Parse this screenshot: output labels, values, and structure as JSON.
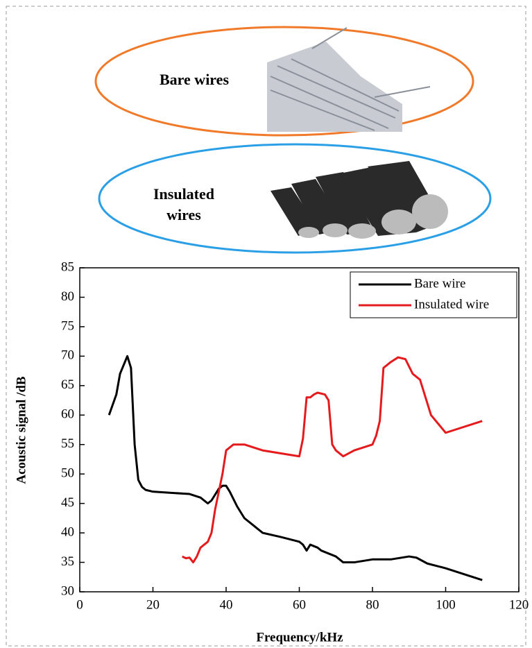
{
  "chart_data": {
    "type": "line",
    "annotations": [
      "Bare wires",
      "Insulated wires"
    ],
    "xlabel": "Frequency/kHz",
    "ylabel": "Acoustic signal /dB",
    "xlim": [
      0,
      120
    ],
    "xticks": [
      0,
      20,
      40,
      60,
      80,
      100,
      120
    ],
    "ylim": [
      30,
      85
    ],
    "yticks": [
      30,
      35,
      40,
      45,
      50,
      55,
      60,
      65,
      70,
      75,
      80,
      85
    ],
    "legend": "upper right",
    "series": [
      {
        "name": "Bare wire",
        "color": "#000000",
        "x": [
          8,
          10,
          11,
          13,
          14,
          15,
          16,
          17,
          18,
          20,
          25,
          30,
          33,
          35,
          36,
          38,
          39,
          40,
          41,
          43,
          45,
          47,
          50,
          55,
          60,
          61,
          62,
          63,
          65,
          66,
          68,
          70,
          72,
          75,
          80,
          85,
          90,
          92,
          95,
          100,
          105,
          110
        ],
        "values": [
          60,
          63.5,
          67,
          70,
          68,
          55,
          49,
          47.8,
          47.3,
          47,
          46.8,
          46.6,
          46,
          45,
          45.5,
          47.5,
          48,
          48,
          47,
          44.5,
          42.5,
          41.5,
          40,
          39.3,
          38.5,
          38,
          37,
          38,
          37.5,
          37,
          36.5,
          36,
          35,
          35,
          35.5,
          35.5,
          36,
          35.8,
          34.8,
          34,
          33,
          32
        ]
      },
      {
        "name": "Insulated wire",
        "color": "#e41a1c",
        "x": [
          28,
          29,
          30,
          31,
          32,
          33,
          35,
          36,
          37,
          38,
          39,
          40,
          42,
          45,
          50,
          55,
          60,
          61,
          62,
          63,
          64,
          65,
          67,
          68,
          69,
          70,
          72,
          75,
          80,
          81,
          82,
          83,
          85,
          87,
          89,
          91,
          93,
          94,
          96,
          100,
          110
        ],
        "values": [
          36,
          35.7,
          35.8,
          35,
          36,
          37.5,
          38.5,
          40,
          44,
          47,
          50,
          54,
          55,
          55,
          54,
          53.5,
          53,
          56,
          63,
          63,
          63.5,
          63.8,
          63.5,
          62.5,
          55,
          54,
          53,
          54,
          55,
          56.5,
          59,
          68,
          69,
          69.8,
          69.5,
          67,
          66,
          64,
          60,
          57,
          59
        ]
      }
    ]
  }
}
